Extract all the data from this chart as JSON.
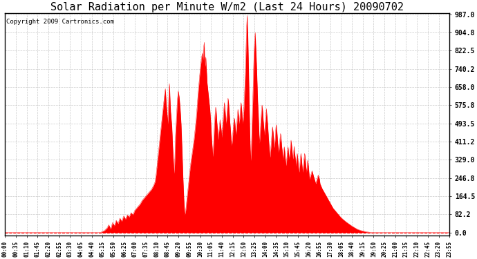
{
  "title": "Solar Radiation per Minute W/m2 (Last 24 Hours) 20090702",
  "copyright": "Copyright 2009 Cartronics.com",
  "yticks": [
    0.0,
    82.2,
    164.5,
    246.8,
    329.0,
    411.2,
    493.5,
    575.8,
    658.0,
    740.2,
    822.5,
    904.8,
    987.0
  ],
  "ymax": 987.0,
  "ymin": 0.0,
  "fill_color": "red",
  "line_color": "red",
  "background_color": "#ffffff",
  "title_fontsize": 11,
  "copyright_fontsize": 6.5,
  "xtick_labels": [
    "00:00",
    "00:35",
    "01:10",
    "01:45",
    "02:20",
    "02:55",
    "03:30",
    "04:05",
    "04:40",
    "05:15",
    "05:50",
    "06:25",
    "07:00",
    "07:35",
    "08:10",
    "08:45",
    "09:20",
    "09:55",
    "10:30",
    "11:05",
    "11:40",
    "12:15",
    "12:50",
    "13:25",
    "14:00",
    "14:35",
    "15:10",
    "15:45",
    "16:20",
    "16:55",
    "17:30",
    "18:05",
    "18:40",
    "19:15",
    "19:50",
    "20:25",
    "21:00",
    "21:35",
    "22:10",
    "22:45",
    "23:20",
    "23:55"
  ]
}
